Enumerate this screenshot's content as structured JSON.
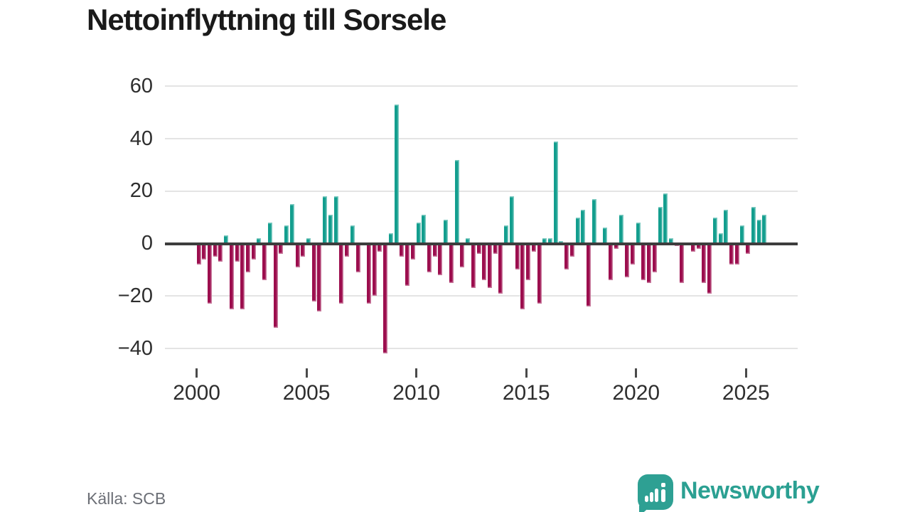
{
  "title": "Nettoinflyttning till Sorsele",
  "source": "Källa: SCB",
  "logo": {
    "wordmark": "Newsworthy"
  },
  "colors": {
    "positive": "#139e8e",
    "negative": "#9c0e4e",
    "zero_line": "#3d3d3d",
    "gridline": "#e4e4e4",
    "title_text": "#1a1a1a",
    "axis_text": "#2e2e2e",
    "source_text": "#6c6f76",
    "logo_teal": "#2ea093",
    "background": "#ffffff"
  },
  "chart_data": {
    "type": "bar",
    "title": "Nettoinflyttning till Sorsele",
    "frequency": "quarterly",
    "start": "2000Q1",
    "end": "2025Q4",
    "values": [
      -8,
      -6,
      -23,
      -5,
      -7,
      3,
      -25,
      -7,
      -25,
      -11,
      -6,
      2,
      -14,
      8,
      -32,
      -4,
      7,
      15,
      -9,
      -5,
      2,
      -22,
      -26,
      18,
      11,
      18,
      -23,
      -5,
      7,
      -11,
      0,
      -23,
      -20,
      -3,
      -42,
      4,
      53,
      -5,
      -16,
      -6,
      8,
      11,
      -11,
      -5,
      -12,
      9,
      -15,
      32,
      -9,
      2,
      -17,
      -4,
      -14,
      -17,
      -4,
      -19,
      7,
      18,
      -10,
      -25,
      -14,
      -3,
      -23,
      2,
      2,
      39,
      1,
      -10,
      -5,
      10,
      13,
      -24,
      17,
      0,
      6,
      -14,
      -2,
      11,
      -13,
      -8,
      8,
      -14,
      -15,
      -11,
      14,
      19,
      2,
      -1,
      -15,
      0,
      -3,
      -2,
      -15,
      -19,
      10,
      4,
      13,
      -8,
      -8,
      7,
      -4,
      14,
      9,
      11
    ],
    "y_ticks": [
      60,
      40,
      20,
      0,
      -20,
      -40
    ],
    "x_tick_years": [
      2000,
      2005,
      2010,
      2015,
      2020,
      2025
    ],
    "ylim": [
      -45,
      65
    ],
    "grid": "horizontal",
    "legend": "none"
  }
}
